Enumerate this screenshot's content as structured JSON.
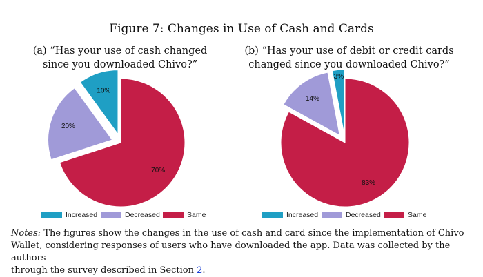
{
  "figure_title": "Figure 7: Changes in Use of Cash and Cards",
  "colors": {
    "increased": "#1f9fc4",
    "decreased": "#a09ad8",
    "same": "#c41e47"
  },
  "chart_data": [
    {
      "type": "pie",
      "title_line1": "(a) “Has your use of cash changed",
      "title_line2": "since you downloaded Chivo?”",
      "slices": [
        {
          "label": "Increased",
          "value": 10,
          "display": "10%"
        },
        {
          "label": "Decreased",
          "value": 20,
          "display": "20%"
        },
        {
          "label": "Same",
          "value": 70,
          "display": "70%"
        }
      ],
      "legend": [
        "Increased",
        "Decreased",
        "Same"
      ],
      "legend_position": "bottom"
    },
    {
      "type": "pie",
      "title_line1": "(b) “Has your use of debit or credit cards",
      "title_line2": "changed since you downloaded Chivo?”",
      "slices": [
        {
          "label": "Increased",
          "value": 3,
          "display": "3%"
        },
        {
          "label": "Decreased",
          "value": 14,
          "display": "14%"
        },
        {
          "label": "Same",
          "value": 83,
          "display": "83%"
        }
      ],
      "legend": [
        "Increased",
        "Decreased",
        "Same"
      ],
      "legend_position": "bottom"
    }
  ],
  "notes": {
    "label": "Notes:",
    "line1": "The figures show the changes in the use of cash and card since the implementation of Chivo",
    "line2": "Wallet, considering responses of users who have downloaded the app. Data was collected by the authors",
    "line3": "through the survey described in Section ",
    "section_ref": "2",
    "line3_end": "."
  }
}
